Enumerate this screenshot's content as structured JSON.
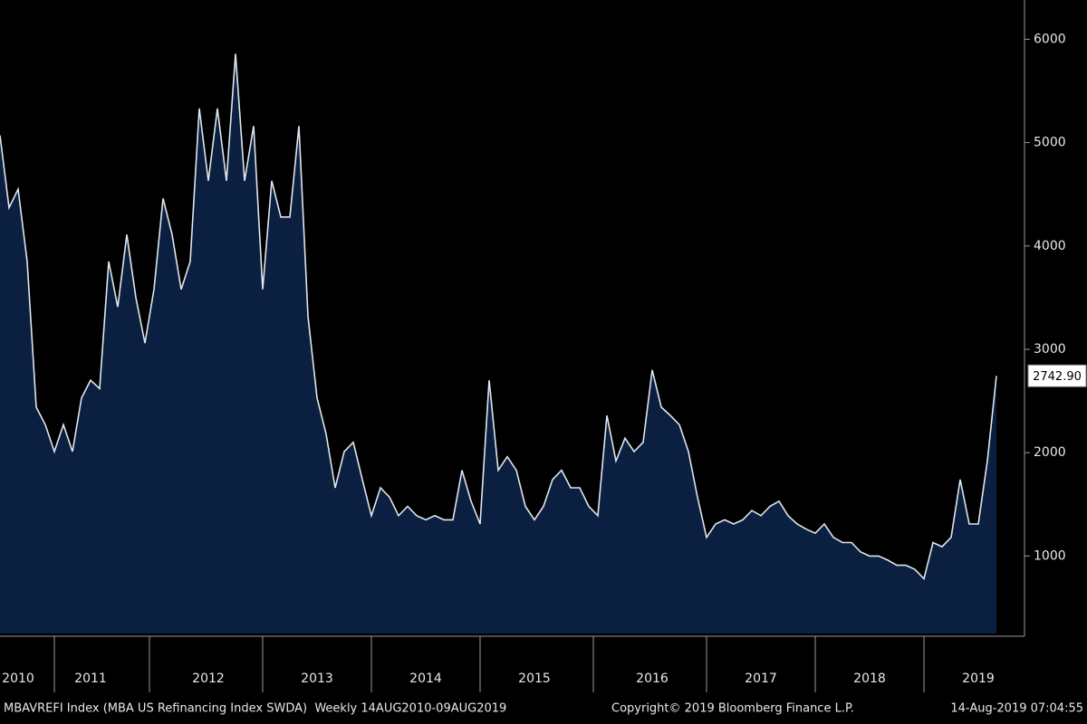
{
  "chart_data": {
    "type": "area",
    "categories": [
      null,
      null,
      "2010",
      null,
      null,
      null,
      null,
      null,
      null,
      null,
      "2011",
      null,
      null,
      null,
      null,
      null,
      null,
      null,
      null,
      null,
      null,
      null,
      null,
      "2012",
      null,
      null,
      null,
      null,
      null,
      null,
      null,
      null,
      null,
      null,
      null,
      "2013",
      null,
      null,
      null,
      null,
      null,
      null,
      null,
      null,
      null,
      null,
      null,
      "2014",
      null,
      null,
      null,
      null,
      null,
      null,
      null,
      null,
      null,
      null,
      null,
      "2015",
      null,
      null,
      null,
      null,
      null,
      null,
      null,
      null,
      null,
      null,
      null,
      null,
      "2016",
      null,
      null,
      null,
      null,
      null,
      null,
      null,
      null,
      null,
      null,
      null,
      "2017",
      null,
      null,
      null,
      null,
      null,
      null,
      null,
      null,
      null,
      null,
      null,
      "2018",
      null,
      null,
      null,
      null,
      null,
      null,
      null,
      null,
      null,
      null,
      null,
      "2019",
      null,
      null
    ],
    "series": [
      {
        "name": "MBAVREFI Index",
        "color": "#dfe6ee",
        "fill": "#0b2040",
        "values": [
          5070,
          4370,
          4550,
          3850,
          2440,
          2270,
          2010,
          2270,
          2010,
          2530,
          2700,
          2620,
          3850,
          3410,
          4110,
          3500,
          3060,
          3580,
          4460,
          4110,
          3580,
          3850,
          5330,
          4630,
          5330,
          4630,
          5860,
          4630,
          5160,
          3580,
          4630,
          4280,
          4280,
          5160,
          3320,
          2530,
          2180,
          1660,
          2010,
          2100,
          1740,
          1390,
          1660,
          1570,
          1390,
          1480,
          1390,
          1350,
          1390,
          1350,
          1350,
          1830,
          1530,
          1310,
          2700,
          1830,
          1960,
          1830,
          1480,
          1350,
          1480,
          1740,
          1830,
          1660,
          1660,
          1480,
          1390,
          2360,
          1920,
          2140,
          2010,
          2100,
          2800,
          2440,
          2360,
          2270,
          2010,
          1570,
          1180,
          1310,
          1350,
          1310,
          1350,
          1440,
          1390,
          1480,
          1530,
          1390,
          1310,
          1260,
          1220,
          1310,
          1180,
          1130,
          1130,
          1040,
          1000,
          1000,
          960,
          910,
          910,
          870,
          780,
          1130,
          1090,
          1180,
          1740,
          1310,
          1310,
          1920,
          2742.9
        ],
        "value_labels": [
          null,
          null,
          null,
          null,
          null,
          null,
          null,
          null,
          null,
          null,
          null,
          null,
          null,
          null,
          null,
          null,
          null,
          null,
          null,
          null,
          null,
          null,
          null,
          null,
          null,
          null,
          null,
          null,
          null,
          null,
          null,
          null,
          null,
          null,
          null,
          null,
          null,
          null,
          null,
          null,
          null,
          null,
          null,
          null,
          null,
          null,
          null,
          null,
          null,
          null,
          null,
          null,
          null,
          null,
          null,
          null,
          null,
          null,
          null,
          null,
          null,
          null,
          null,
          null,
          null,
          null,
          null,
          null,
          null,
          null,
          null,
          null,
          null,
          null,
          null,
          null,
          null,
          null,
          null,
          null,
          null,
          null,
          null,
          null,
          null,
          null,
          null,
          null,
          null,
          null,
          null,
          null,
          null,
          null,
          null,
          null,
          null,
          null,
          null,
          null,
          null,
          null,
          null,
          null,
          null,
          null,
          null,
          null,
          null,
          null,
          "2742.90"
        ]
      }
    ],
    "ylim": [
      250,
      6380
    ],
    "yticks": [
      1000,
      2000,
      3000,
      4000,
      5000,
      6000
    ],
    "y_axis_side": "right"
  },
  "footer": {
    "left": "MBAVREFI Index (MBA US Refinancing Index SWDA)  Weekly 14AUG2010-09AUG2019",
    "center": "Copyright© 2019 Bloomberg Finance L.P.",
    "right": "14-Aug-2019 07:04:55"
  }
}
